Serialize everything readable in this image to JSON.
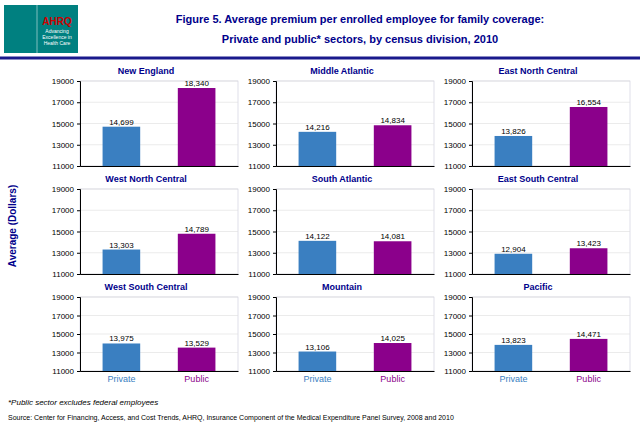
{
  "title": "Figure 5. Average premium per enrolled employee for family coverage:",
  "subtitle": "Private and public* sectors, by census division, 2010",
  "ylabel": "Average (Dollars)",
  "annotations": [
    "*Public sector excludes federal employees",
    "Source: Center for Financing, Access, and Cost Trends, AHRQ, Insurance Component of the Medical Expenditure Panel Survey, 2008 and 2010",
    "AHRQ",
    "Advancing",
    "Excellence in",
    "Health Care"
  ],
  "chart_data": [
    {
      "type": "bar",
      "title": "New England",
      "categories": [
        "Private",
        "Public"
      ],
      "values": [
        14699,
        18340
      ],
      "value_labels": [
        "14,699",
        "18,340"
      ],
      "colors": [
        "#3A7FC1",
        "#8B008B"
      ],
      "ylim": [
        11000,
        19000
      ],
      "yticks": [
        11000,
        13000,
        15000,
        17000,
        19000
      ],
      "grid": true,
      "data_labels": true,
      "tick_labels": "y"
    },
    {
      "type": "bar",
      "title": "Middle Atlantic",
      "categories": [
        "Private",
        "Public"
      ],
      "values": [
        14216,
        14834
      ],
      "value_labels": [
        "14,216",
        "14,834"
      ],
      "colors": [
        "#3A7FC1",
        "#8B008B"
      ],
      "ylim": [
        11000,
        19000
      ],
      "yticks": [
        11000,
        13000,
        15000,
        17000,
        19000
      ],
      "grid": true,
      "data_labels": true,
      "tick_labels": "y"
    },
    {
      "type": "bar",
      "title": "East North Central",
      "categories": [
        "Private",
        "Public"
      ],
      "values": [
        13826,
        16554
      ],
      "value_labels": [
        "13,826",
        "16,554"
      ],
      "colors": [
        "#3A7FC1",
        "#8B008B"
      ],
      "ylim": [
        11000,
        19000
      ],
      "yticks": [
        11000,
        13000,
        15000,
        17000,
        19000
      ],
      "grid": true,
      "data_labels": true,
      "tick_labels": "y"
    },
    {
      "type": "bar",
      "title": "West North Central",
      "categories": [
        "Private",
        "Public"
      ],
      "values": [
        13303,
        14789
      ],
      "value_labels": [
        "13,303",
        "14,789"
      ],
      "colors": [
        "#3A7FC1",
        "#8B008B"
      ],
      "ylim": [
        11000,
        19000
      ],
      "yticks": [
        11000,
        13000,
        15000,
        17000,
        19000
      ],
      "grid": true,
      "data_labels": true,
      "tick_labels": "y"
    },
    {
      "type": "bar",
      "title": "South Atlantic",
      "categories": [
        "Private",
        "Public"
      ],
      "values": [
        14122,
        14081
      ],
      "value_labels": [
        "14,122",
        "14,081"
      ],
      "colors": [
        "#3A7FC1",
        "#8B008B"
      ],
      "ylim": [
        11000,
        19000
      ],
      "yticks": [
        11000,
        13000,
        15000,
        17000,
        19000
      ],
      "grid": true,
      "data_labels": true,
      "tick_labels": "y"
    },
    {
      "type": "bar",
      "title": "East South Central",
      "categories": [
        "Private",
        "Public"
      ],
      "values": [
        12904,
        13423
      ],
      "value_labels": [
        "12,904",
        "13,423"
      ],
      "colors": [
        "#3A7FC1",
        "#8B008B"
      ],
      "ylim": [
        11000,
        19000
      ],
      "yticks": [
        11000,
        13000,
        15000,
        17000,
        19000
      ],
      "grid": true,
      "data_labels": true,
      "tick_labels": "y"
    },
    {
      "type": "bar",
      "title": "West South Central",
      "categories": [
        "Private",
        "Public"
      ],
      "values": [
        13975,
        13529
      ],
      "value_labels": [
        "13,975",
        "13,529"
      ],
      "colors": [
        "#3A7FC1",
        "#8B008B"
      ],
      "ylim": [
        11000,
        19000
      ],
      "yticks": [
        11000,
        13000,
        15000,
        17000,
        19000
      ],
      "grid": true,
      "data_labels": true
    },
    {
      "type": "bar",
      "title": "Mountain",
      "categories": [
        "Private",
        "Public"
      ],
      "values": [
        13106,
        14025
      ],
      "value_labels": [
        "13,106",
        "14,025"
      ],
      "colors": [
        "#3A7FC1",
        "#8B008B"
      ],
      "ylim": [
        11000,
        19000
      ],
      "yticks": [
        11000,
        13000,
        15000,
        17000,
        19000
      ],
      "grid": true,
      "data_labels": true
    },
    {
      "type": "bar",
      "title": "Pacific",
      "categories": [
        "Private",
        "Public"
      ],
      "values": [
        13823,
        14471
      ],
      "value_labels": [
        "13,823",
        "14,471"
      ],
      "colors": [
        "#3A7FC1",
        "#8B008B"
      ],
      "ylim": [
        11000,
        19000
      ],
      "yticks": [
        11000,
        13000,
        15000,
        17000,
        19000
      ],
      "grid": true,
      "data_labels": true
    }
  ]
}
